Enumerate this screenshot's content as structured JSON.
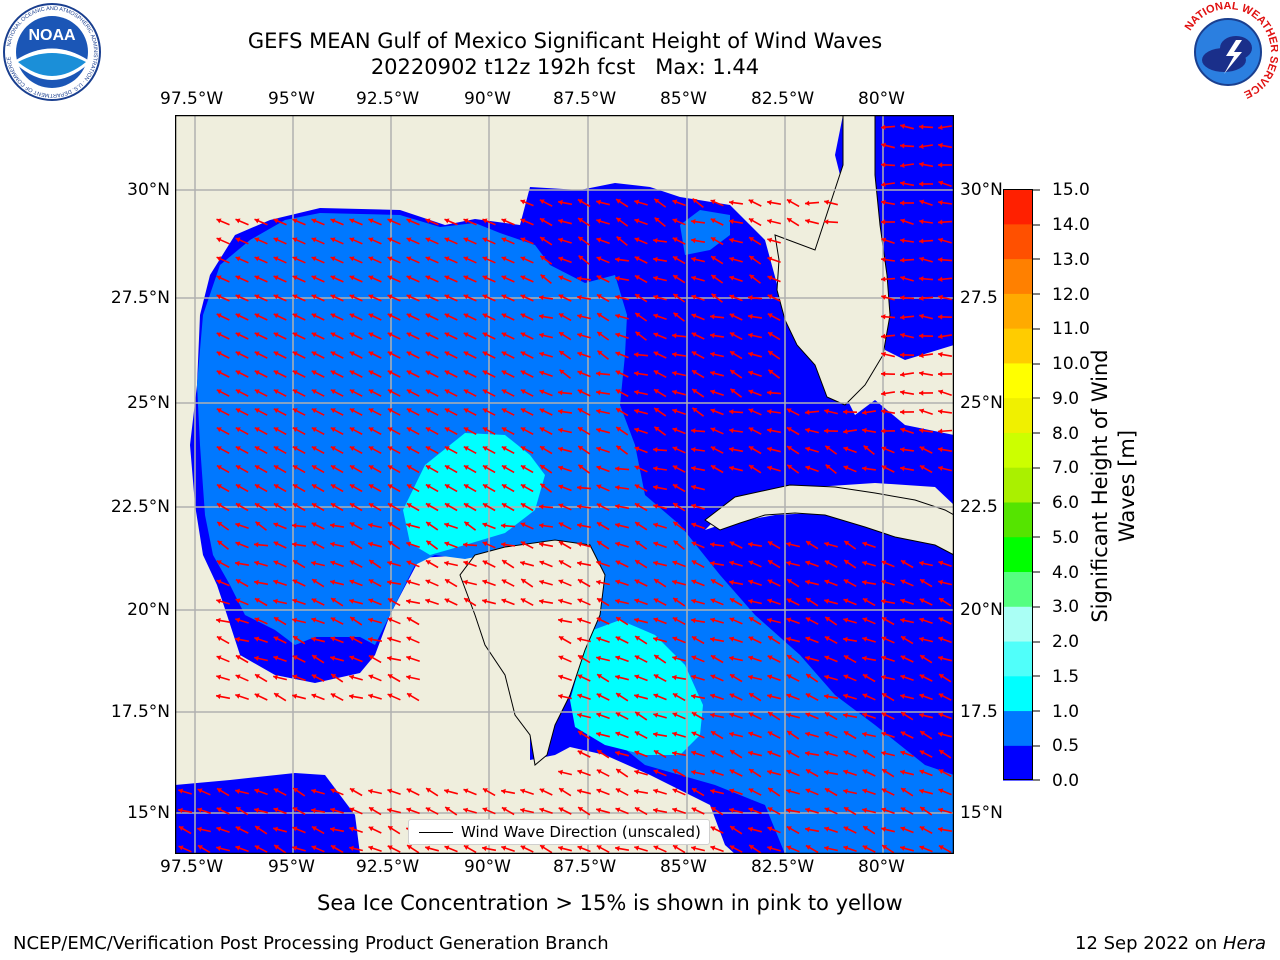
{
  "title": {
    "line1": "GEFS MEAN Gulf of Mexico Significant Height of Wind Waves",
    "line2": "20220902 t12z 192h fcst   Max: 1.44"
  },
  "logos": {
    "left": "NOAA",
    "left_ring": "NATIONAL OCEANIC AND ATMOSPHERIC ADMINISTRATION · U.S. DEPARTMENT OF COMMERCE",
    "right_ring": "NATIONAL WEATHER SERVICE"
  },
  "map": {
    "lon_labels": [
      "97.5°W",
      "95°W",
      "92.5°W",
      "90°W",
      "87.5°W",
      "85°W",
      "82.5°W",
      "80°W"
    ],
    "lat_labels_left": [
      "30°N",
      "27.5°N",
      "25°N",
      "22.5°N",
      "20°N",
      "17.5°N",
      "15°N"
    ],
    "lat_labels_right": [
      "30°N",
      "27.5",
      "25°N",
      "22.5",
      "20°N",
      "17.5",
      "15°N"
    ],
    "legend_label": "Wind Wave Direction (unscaled)",
    "colors": {
      "land": "#efeedd",
      "grid": "#b0b0b0",
      "arrow": "#ff0000",
      "wave_0_0.5": "#0000ff",
      "wave_0.5_1": "#0078ff",
      "wave_1_1.5": "#00ffff"
    }
  },
  "colorbar": {
    "ticks": [
      "15.0",
      "14.0",
      "13.0",
      "12.0",
      "11.0",
      "10.0",
      "9.0",
      "8.0",
      "7.0",
      "6.0",
      "5.0",
      "4.0",
      "3.0",
      "2.0",
      "1.5",
      "1.0",
      "0.5",
      "0.0"
    ],
    "colors_bottom_to_top": [
      "#0000ff",
      "#0078ff",
      "#00ffff",
      "#50fffa",
      "#aafff5",
      "#55ff80",
      "#00ff00",
      "#55e400",
      "#aaf000",
      "#ccff00",
      "#f0f000",
      "#ffff00",
      "#ffcc00",
      "#ffaa00",
      "#ff8000",
      "#ff5000",
      "#ff2000"
    ],
    "label": "Significant Height of Wind Waves [m]"
  },
  "footer": {
    "note": "Sea Ice Concentration > 15% is shown in pink to yellow",
    "left": "NCEP/EMC/Verification Post Processing Product Generation Branch",
    "right_prefix": "12 Sep 2022 on ",
    "right_machine": "Hera"
  }
}
